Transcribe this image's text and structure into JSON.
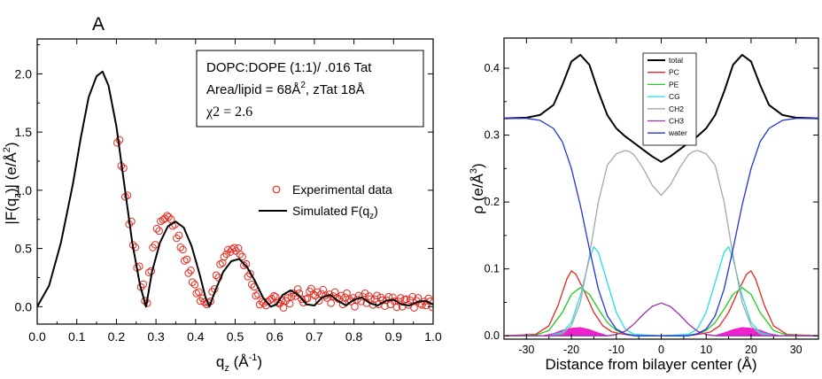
{
  "figure": {
    "panel_label": "A"
  },
  "chart_data": [
    {
      "type": "line",
      "xlabel": "q",
      "xlabel_sub": "z",
      "xlabel_unit": " (Å",
      "xlabel_unit_sup": "-1",
      "xlabel_close": ")",
      "ylabel": "|F(q",
      "ylabel_sub": "z",
      "ylabel_mid": ")| (e/Å",
      "ylabel_sup": "2",
      "ylabel_close": ")",
      "xlim": [
        0.0,
        1.0
      ],
      "ylim": [
        -0.15,
        2.3
      ],
      "x_ticks": [
        "0.0",
        "0.1",
        "0.2",
        "0.3",
        "0.4",
        "0.5",
        "0.6",
        "0.7",
        "0.8",
        "0.9",
        "1.0"
      ],
      "y_ticks": [
        "0.0",
        "0.5",
        "1.0",
        "1.5",
        "2.0"
      ],
      "info_box": {
        "line1": "DOPC:DOPE (1:1)/ .016 Tat",
        "line2_a": "Area/lipid = 68Å",
        "line2_sup": "2",
        "line2_b": ", zTat 18Å",
        "line3": "χ2 = 2.6"
      },
      "legend_position": "center-right",
      "series": [
        {
          "name": "Experimental data",
          "style": "open-circle",
          "color": "#e8281e",
          "x": [
            0.205,
            0.215,
            0.225,
            0.235,
            0.245,
            0.255,
            0.265,
            0.275,
            0.285,
            0.295,
            0.305,
            0.315,
            0.325,
            0.335,
            0.345,
            0.355,
            0.365,
            0.375,
            0.385,
            0.395,
            0.405,
            0.415,
            0.425,
            0.435,
            0.445,
            0.455,
            0.465,
            0.475,
            0.485,
            0.495,
            0.505,
            0.515,
            0.525,
            0.535,
            0.545,
            0.555,
            0.565,
            0.575,
            0.585,
            0.595,
            0.605,
            0.615,
            0.625,
            0.635,
            0.645,
            0.655,
            0.665,
            0.675,
            0.685,
            0.695,
            0.705,
            0.715,
            0.725,
            0.735,
            0.745,
            0.755,
            0.765,
            0.775,
            0.785,
            0.795,
            0.805,
            0.815,
            0.825,
            0.835,
            0.845,
            0.855,
            0.865,
            0.875,
            0.885,
            0.895,
            0.905,
            0.915,
            0.925,
            0.935,
            0.945,
            0.955,
            0.965,
            0.975,
            0.985,
            0.995
          ],
          "y": [
            1.42,
            1.2,
            0.95,
            0.72,
            0.52,
            0.34,
            0.18,
            0.04,
            0.3,
            0.52,
            0.66,
            0.74,
            0.77,
            0.76,
            0.7,
            0.6,
            0.5,
            0.4,
            0.3,
            0.2,
            0.12,
            0.06,
            0.03,
            0.04,
            0.14,
            0.26,
            0.37,
            0.44,
            0.48,
            0.5,
            0.49,
            0.44,
            0.36,
            0.27,
            0.18,
            0.1,
            0.03,
            0.02,
            0.05,
            0.08,
            0.06,
            0.04,
            0.02,
            0.05,
            0.1,
            0.12,
            0.09,
            0.05,
            0.1,
            0.13,
            0.11,
            0.08,
            0.12,
            0.09,
            0.06,
            0.1,
            0.08,
            0.05,
            0.09,
            0.06,
            0.03,
            0.07,
            0.1,
            0.06,
            0.04,
            0.08,
            0.05,
            0.03,
            0.07,
            0.05,
            0.02,
            0.06,
            0.03,
            0.04,
            0.07,
            0.02,
            0.05,
            0.03,
            0.04,
            0.02
          ]
        },
        {
          "name": "Simulated F(q",
          "name_sub": "z",
          "name_close": ")",
          "style": "line",
          "color": "#000000",
          "x": [
            0.0,
            0.03,
            0.06,
            0.09,
            0.11,
            0.13,
            0.15,
            0.165,
            0.18,
            0.2,
            0.22,
            0.24,
            0.26,
            0.275,
            0.29,
            0.31,
            0.33,
            0.35,
            0.37,
            0.39,
            0.41,
            0.425,
            0.435,
            0.45,
            0.47,
            0.49,
            0.51,
            0.53,
            0.55,
            0.57,
            0.59,
            0.605,
            0.62,
            0.64,
            0.66,
            0.68,
            0.7,
            0.72,
            0.74,
            0.76,
            0.78,
            0.8,
            0.82,
            0.84,
            0.86,
            0.88,
            0.9,
            0.92,
            0.94,
            0.96,
            0.98,
            1.0
          ],
          "y": [
            0.0,
            0.18,
            0.55,
            1.05,
            1.45,
            1.8,
            1.98,
            2.02,
            1.9,
            1.55,
            1.05,
            0.55,
            0.18,
            0.0,
            0.3,
            0.55,
            0.69,
            0.73,
            0.68,
            0.52,
            0.28,
            0.08,
            0.0,
            0.14,
            0.3,
            0.39,
            0.41,
            0.34,
            0.22,
            0.08,
            0.0,
            0.02,
            0.1,
            0.14,
            0.1,
            0.02,
            0.01,
            0.08,
            0.1,
            0.05,
            0.01,
            0.06,
            0.08,
            0.03,
            0.01,
            0.05,
            0.06,
            0.02,
            0.01,
            0.04,
            0.05,
            0.02
          ]
        }
      ]
    },
    {
      "type": "line",
      "xlabel": "Distance from bilayer center (Å)",
      "ylabel": "ρ (e/Å",
      "ylabel_sup": "3",
      "ylabel_close": ")",
      "xlim": [
        -35,
        35
      ],
      "ylim": [
        -0.005,
        0.445
      ],
      "x_ticks": [
        "-30",
        "-20",
        "-10",
        "0",
        "10",
        "20",
        "30"
      ],
      "y_ticks": [
        "0.0",
        "0.1",
        "0.2",
        "0.3",
        "0.4"
      ],
      "legend_position": "top-center",
      "series": [
        {
          "name": "total",
          "color": "#000000",
          "x": [
            -35,
            -30,
            -27,
            -24,
            -22,
            -20,
            -18,
            -16,
            -14,
            -12,
            -10,
            -8,
            -6,
            -4,
            -2,
            0,
            2,
            4,
            6,
            8,
            10,
            12,
            14,
            16,
            18,
            20,
            22,
            24,
            27,
            30,
            35
          ],
          "y": [
            0.325,
            0.326,
            0.33,
            0.345,
            0.375,
            0.41,
            0.42,
            0.405,
            0.365,
            0.33,
            0.31,
            0.298,
            0.288,
            0.278,
            0.268,
            0.26,
            0.268,
            0.278,
            0.288,
            0.298,
            0.31,
            0.33,
            0.365,
            0.405,
            0.42,
            0.41,
            0.375,
            0.345,
            0.33,
            0.326,
            0.325
          ]
        },
        {
          "name": "PC",
          "color": "#e8281e",
          "x": [
            -35,
            -28,
            -25,
            -23,
            -21,
            -20,
            -19,
            -17,
            -15,
            -13,
            -11,
            -9,
            -7,
            -5,
            0,
            5,
            7,
            9,
            11,
            13,
            15,
            17,
            19,
            20,
            21,
            23,
            25,
            28,
            35
          ],
          "y": [
            0,
            0.002,
            0.015,
            0.045,
            0.085,
            0.097,
            0.092,
            0.065,
            0.035,
            0.015,
            0.006,
            0.003,
            0.001,
            0,
            0,
            0,
            0.001,
            0.003,
            0.006,
            0.015,
            0.035,
            0.065,
            0.092,
            0.097,
            0.085,
            0.045,
            0.015,
            0.002,
            0
          ]
        },
        {
          "name": "PE",
          "color": "#22cc22",
          "x": [
            -35,
            -28,
            -25,
            -22,
            -20,
            -18,
            -16,
            -14,
            -12,
            -10,
            -8,
            -6,
            0,
            6,
            8,
            10,
            12,
            14,
            16,
            18,
            20,
            22,
            25,
            28,
            35
          ],
          "y": [
            0,
            0.001,
            0.008,
            0.035,
            0.062,
            0.072,
            0.062,
            0.04,
            0.02,
            0.008,
            0.003,
            0.001,
            0,
            0.001,
            0.003,
            0.008,
            0.02,
            0.04,
            0.062,
            0.072,
            0.062,
            0.035,
            0.008,
            0.001,
            0
          ]
        },
        {
          "name": "CG",
          "color": "#22e0e6",
          "x": [
            -35,
            -25,
            -22,
            -20,
            -18,
            -16,
            -15,
            -14,
            -12,
            -10,
            -8,
            -6,
            0,
            6,
            8,
            10,
            12,
            14,
            15,
            16,
            18,
            20,
            22,
            25,
            35
          ],
          "y": [
            0,
            0,
            0.005,
            0.02,
            0.06,
            0.115,
            0.133,
            0.125,
            0.08,
            0.035,
            0.01,
            0.002,
            0,
            0.002,
            0.01,
            0.035,
            0.08,
            0.125,
            0.133,
            0.115,
            0.06,
            0.02,
            0.005,
            0,
            0
          ]
        },
        {
          "name": "CH2",
          "color": "#a6a6a6",
          "x": [
            -35,
            -24,
            -22,
            -20,
            -18,
            -16,
            -14,
            -12,
            -10,
            -8,
            -7,
            -6,
            -4,
            -2,
            0,
            2,
            4,
            6,
            7,
            8,
            10,
            12,
            14,
            16,
            18,
            20,
            22,
            24,
            35
          ],
          "y": [
            0,
            0,
            0.003,
            0.015,
            0.05,
            0.12,
            0.2,
            0.255,
            0.272,
            0.277,
            0.275,
            0.27,
            0.25,
            0.225,
            0.21,
            0.225,
            0.25,
            0.27,
            0.275,
            0.277,
            0.272,
            0.255,
            0.2,
            0.12,
            0.05,
            0.015,
            0.003,
            0,
            0
          ]
        },
        {
          "name": "CH3",
          "color": "#9933aa",
          "x": [
            -35,
            -12,
            -10,
            -8,
            -6,
            -4,
            -2,
            0,
            2,
            4,
            6,
            8,
            10,
            12,
            35
          ],
          "y": [
            0,
            0,
            0.002,
            0.007,
            0.018,
            0.032,
            0.044,
            0.049,
            0.044,
            0.032,
            0.018,
            0.007,
            0.002,
            0,
            0
          ]
        },
        {
          "name": "water",
          "color": "#2233dd",
          "x": [
            -35,
            -30,
            -27,
            -24,
            -22,
            -20,
            -18,
            -16,
            -14,
            -12,
            -10,
            -8,
            -6,
            0,
            6,
            8,
            10,
            12,
            14,
            16,
            18,
            20,
            22,
            24,
            27,
            30,
            35
          ],
          "y": [
            0.325,
            0.325,
            0.322,
            0.31,
            0.29,
            0.25,
            0.195,
            0.13,
            0.07,
            0.03,
            0.01,
            0.003,
            0,
            0,
            0,
            0.003,
            0.01,
            0.03,
            0.07,
            0.13,
            0.195,
            0.25,
            0.29,
            0.31,
            0.322,
            0.325,
            0.325
          ]
        },
        {
          "name": "",
          "style": "filled-area",
          "color": "#ee22cc",
          "x": [
            -35,
            -27,
            -24,
            -22,
            -20,
            -18,
            -16,
            -14,
            -12,
            -10,
            10,
            12,
            14,
            16,
            18,
            20,
            22,
            24,
            27,
            35
          ],
          "y": [
            0,
            0,
            0.004,
            0.009,
            0.012,
            0.013,
            0.01,
            0.005,
            0.001,
            0,
            0,
            0.001,
            0.005,
            0.01,
            0.013,
            0.012,
            0.009,
            0.004,
            0,
            0
          ]
        }
      ]
    }
  ]
}
